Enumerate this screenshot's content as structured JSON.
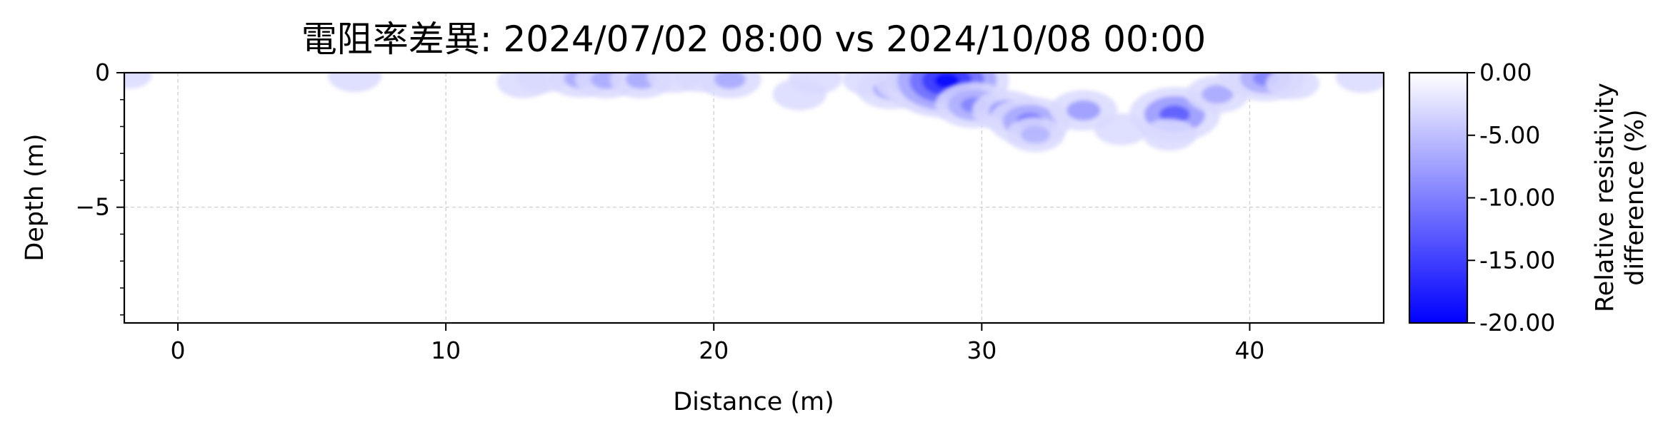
{
  "chart_data": {
    "type": "heatmap",
    "title": "電阻率差異: 2024/07/02 08:00 vs 2024/10/08 00:00",
    "xlabel": "Distance (m)",
    "ylabel": "Depth (m)",
    "xlim": [
      -2,
      45
    ],
    "ylim": [
      -9.3,
      0
    ],
    "x_ticks": [
      {
        "value": 0,
        "label": "0"
      },
      {
        "value": 10,
        "label": "10"
      },
      {
        "value": 20,
        "label": "20"
      },
      {
        "value": 30,
        "label": "30"
      },
      {
        "value": 40,
        "label": "40"
      }
    ],
    "y_ticks": [
      {
        "value": 0,
        "label": "0"
      },
      {
        "value": -5,
        "label": "−5"
      }
    ],
    "grid": true,
    "colorbar": {
      "label_line1": "Relative resistivity",
      "label_line2": "difference (%)",
      "range": [
        -20,
        0
      ],
      "colors": {
        "min": "#0000ff",
        "max": "#ffffff"
      },
      "ticks": [
        {
          "value": 0,
          "label": "0.00"
        },
        {
          "value": -5,
          "label": "-5.00"
        },
        {
          "value": -10,
          "label": "-10.00"
        },
        {
          "value": -15,
          "label": "-15.00"
        },
        {
          "value": -20,
          "label": "-20.00"
        }
      ]
    },
    "anomalies": [
      {
        "x": -1.8,
        "y": -0.1,
        "value": -3
      },
      {
        "x": 6.6,
        "y": -0.12,
        "value": -5
      },
      {
        "x": 12.9,
        "y": -0.35,
        "value": -5
      },
      {
        "x": 13.6,
        "y": -0.15,
        "value": -5
      },
      {
        "x": 15.0,
        "y": -0.22,
        "value": -7
      },
      {
        "x": 16.0,
        "y": -0.25,
        "value": -7
      },
      {
        "x": 17.3,
        "y": -0.25,
        "value": -7
      },
      {
        "x": 18.5,
        "y": -0.15,
        "value": -5
      },
      {
        "x": 19.5,
        "y": -0.12,
        "value": -5
      },
      {
        "x": 20.6,
        "y": -0.25,
        "value": -7
      },
      {
        "x": 23.2,
        "y": -0.8,
        "value": -5
      },
      {
        "x": 23.8,
        "y": -0.2,
        "value": -5
      },
      {
        "x": 25.8,
        "y": -0.25,
        "value": -5
      },
      {
        "x": 26.6,
        "y": -0.6,
        "value": -8
      },
      {
        "x": 27.5,
        "y": -0.3,
        "value": -11
      },
      {
        "x": 28.2,
        "y": -0.7,
        "value": -9
      },
      {
        "x": 28.7,
        "y": -0.3,
        "value": -20
      },
      {
        "x": 29.7,
        "y": -1.2,
        "value": -10
      },
      {
        "x": 30.9,
        "y": -1.4,
        "value": -8
      },
      {
        "x": 31.8,
        "y": -1.8,
        "value": -11
      },
      {
        "x": 32.0,
        "y": -2.3,
        "value": -6
      },
      {
        "x": 33.8,
        "y": -1.4,
        "value": -8
      },
      {
        "x": 35.2,
        "y": -2.1,
        "value": -5
      },
      {
        "x": 37.2,
        "y": -1.55,
        "value": -13
      },
      {
        "x": 37.0,
        "y": -2.3,
        "value": -5
      },
      {
        "x": 38.8,
        "y": -0.8,
        "value": -7
      },
      {
        "x": 39.8,
        "y": -0.1,
        "value": -5
      },
      {
        "x": 40.6,
        "y": -0.2,
        "value": -10
      },
      {
        "x": 41.6,
        "y": -0.4,
        "value": -5
      },
      {
        "x": 44.2,
        "y": -0.15,
        "value": -5
      }
    ]
  }
}
